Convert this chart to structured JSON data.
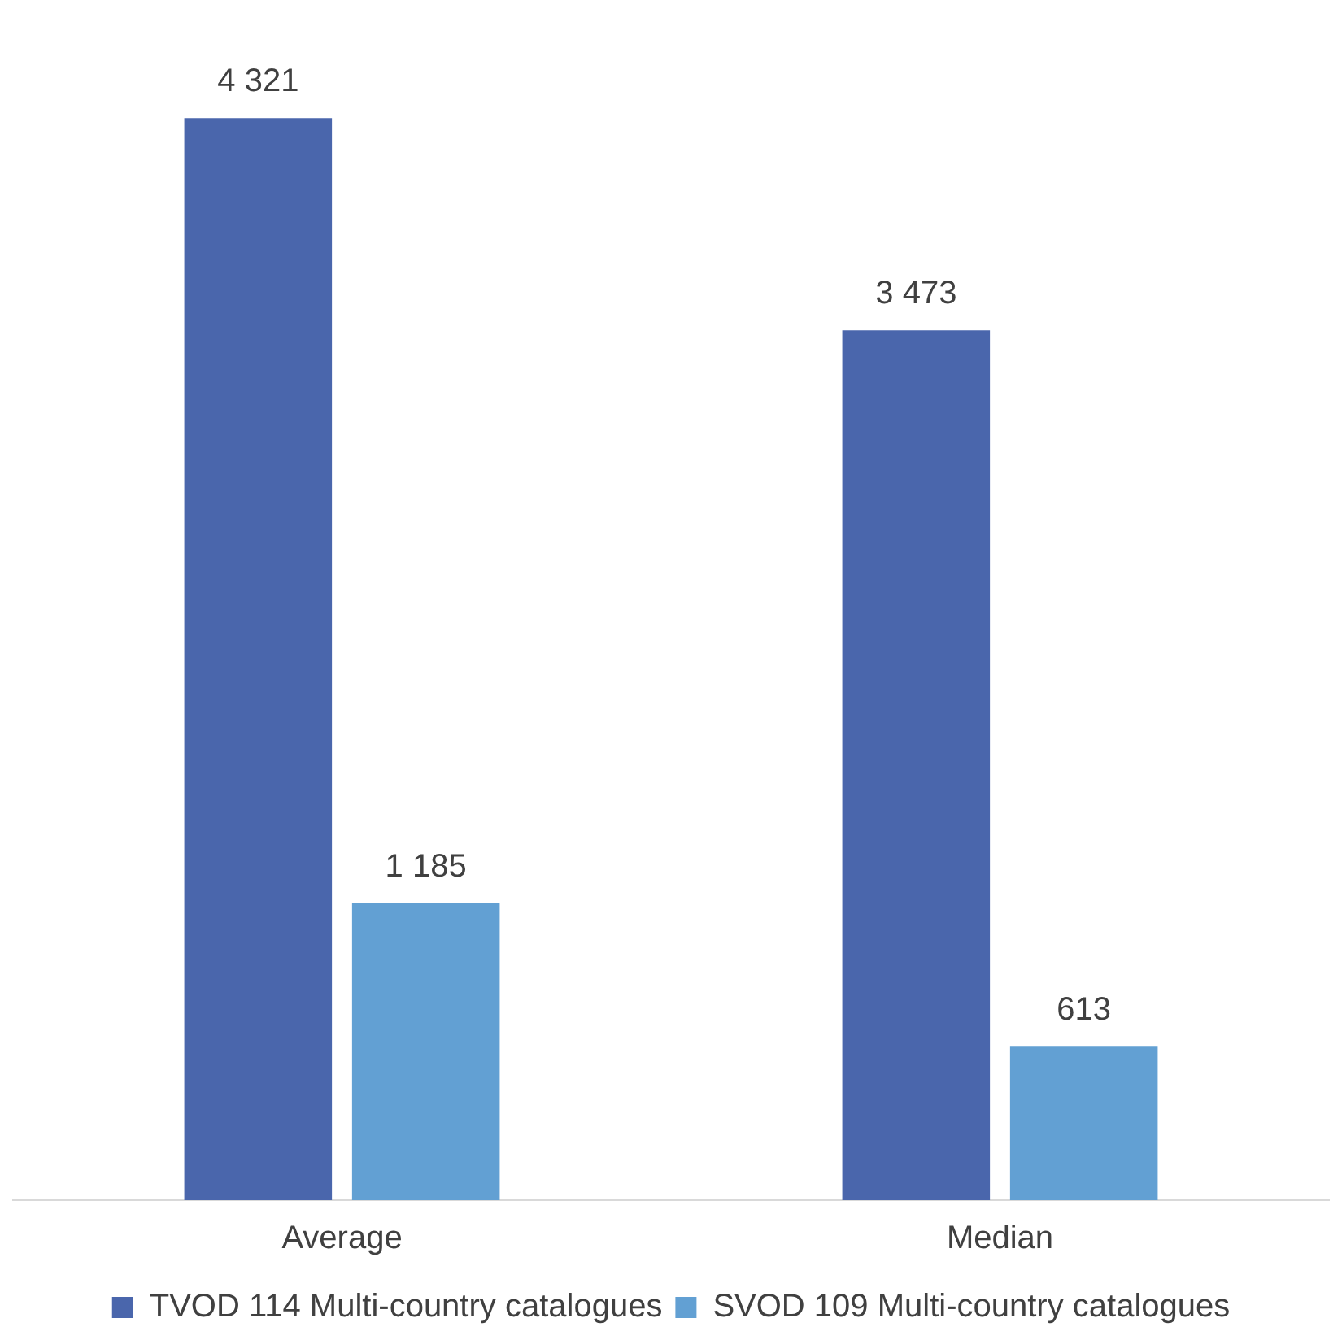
{
  "chart_data": {
    "type": "bar",
    "categories": [
      "Average",
      "Median"
    ],
    "series": [
      {
        "name": "TVOD 114 Multi-country catalogues",
        "color": "#4a66ac",
        "values": [
          4321,
          3473
        ],
        "value_labels": [
          "4 321",
          "3 473"
        ]
      },
      {
        "name": "SVOD 109 Multi-country catalogues",
        "color": "#62a0d3",
        "values": [
          1185,
          613
        ],
        "value_labels": [
          "1 185",
          "613"
        ]
      }
    ],
    "grid": false,
    "legend": "bottom"
  }
}
